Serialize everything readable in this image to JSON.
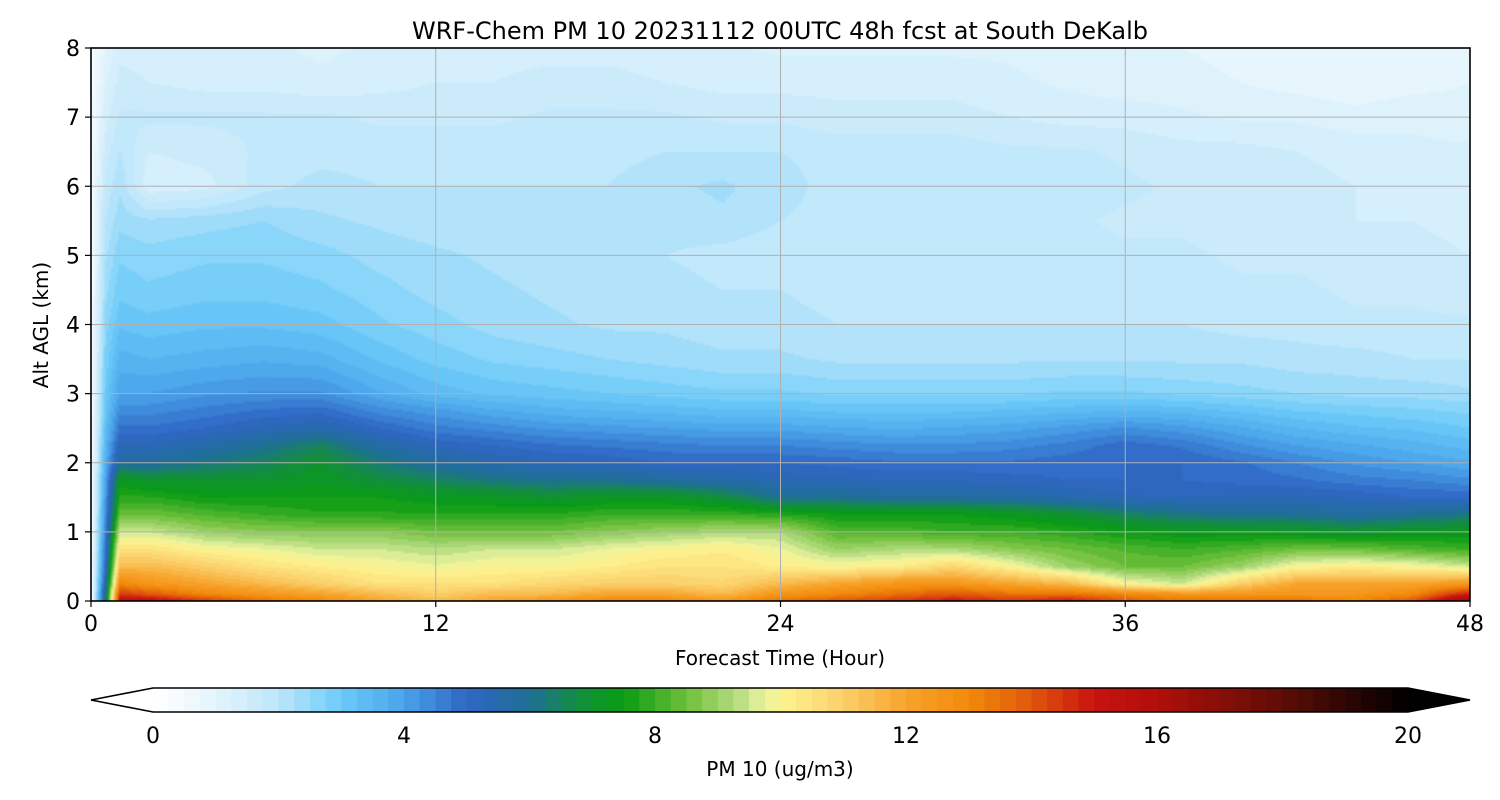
{
  "chart_data": {
    "type": "heatmap",
    "title": "WRF-Chem PM 10  20231112 00UTC 48h fcst at South DeKalb",
    "xlabel": "Forecast Time (Hour)",
    "ylabel": "Alt AGL (km)",
    "xlim": [
      0,
      48
    ],
    "ylim": [
      0,
      8
    ],
    "xticks": [
      0,
      12,
      24,
      36,
      48
    ],
    "yticks": [
      0,
      1,
      2,
      3,
      4,
      5,
      6,
      7,
      8
    ],
    "grid": true,
    "colorbar": {
      "label": "PM 10  (ug/m3)",
      "ticks": [
        0,
        4,
        8,
        12,
        16,
        20
      ],
      "range": [
        0,
        20
      ],
      "extend": "both",
      "stops": [
        {
          "v": 0,
          "color": "#ffffff"
        },
        {
          "v": 1,
          "color": "#e3f4fc"
        },
        {
          "v": 2,
          "color": "#bde6fb"
        },
        {
          "v": 3,
          "color": "#6ccaf9"
        },
        {
          "v": 4,
          "color": "#4aa3ea"
        },
        {
          "v": 5,
          "color": "#2f66c4"
        },
        {
          "v": 6,
          "color": "#1f6f96"
        },
        {
          "v": 6.8,
          "color": "#128f3c"
        },
        {
          "v": 7.5,
          "color": "#089b12"
        },
        {
          "v": 8.5,
          "color": "#6fbf3a"
        },
        {
          "v": 9.3,
          "color": "#b6dc80"
        },
        {
          "v": 9.7,
          "color": "#e3f19c"
        },
        {
          "v": 10,
          "color": "#fdf591"
        },
        {
          "v": 11,
          "color": "#fbcf6a"
        },
        {
          "v": 12,
          "color": "#f8a32c"
        },
        {
          "v": 13,
          "color": "#f28a0a"
        },
        {
          "v": 14,
          "color": "#e0560c"
        },
        {
          "v": 15,
          "color": "#c8120e"
        },
        {
          "v": 16,
          "color": "#b10f0a"
        },
        {
          "v": 18,
          "color": "#5e0d06"
        },
        {
          "v": 20,
          "color": "#000000"
        }
      ]
    },
    "x": [
      0,
      0.5,
      1,
      2,
      4,
      6,
      8,
      10,
      12,
      14,
      16,
      18,
      20,
      22,
      24,
      26,
      28,
      30,
      32,
      34,
      36,
      38,
      40,
      42,
      44,
      46,
      48
    ],
    "y": [
      0,
      0.1,
      0.25,
      0.5,
      0.75,
      1.0,
      1.25,
      1.5,
      1.75,
      2.0,
      2.25,
      2.5,
      2.75,
      3.0,
      3.5,
      4.0,
      4.5,
      5.0,
      5.5,
      6.0,
      6.5,
      7.0,
      7.5,
      8.0
    ],
    "values": [
      [
        0.3,
        6.0,
        15.5,
        15.5,
        14.5,
        13.5,
        13.0,
        12.0,
        11.5,
        12.0,
        12.5,
        13.0,
        13.0,
        12.5,
        13.5,
        14.0,
        14.5,
        15.0,
        14.5,
        15.0,
        14.0,
        13.5,
        13.5,
        13.5,
        13.0,
        14.0,
        17.0
      ],
      [
        0.3,
        6.0,
        14.5,
        14.0,
        13.0,
        12.5,
        12.0,
        11.5,
        11.0,
        11.5,
        11.5,
        12.0,
        12.0,
        11.5,
        12.5,
        13.0,
        13.5,
        14.0,
        13.5,
        13.5,
        13.0,
        12.5,
        12.5,
        12.5,
        12.5,
        13.0,
        15.0
      ],
      [
        0.3,
        5.5,
        13.0,
        12.5,
        12.0,
        11.5,
        11.0,
        10.5,
        10.5,
        10.5,
        10.8,
        11.0,
        11.0,
        10.8,
        11.5,
        12.0,
        12.5,
        12.5,
        12.0,
        11.5,
        10.0,
        9.5,
        11.0,
        12.0,
        12.0,
        12.0,
        12.5
      ],
      [
        0.3,
        5.0,
        11.5,
        11.5,
        11.0,
        10.5,
        10.2,
        10.0,
        9.8,
        10.0,
        10.0,
        10.2,
        10.5,
        10.5,
        10.2,
        10.0,
        10.2,
        10.8,
        10.0,
        9.0,
        8.5,
        8.5,
        9.0,
        10.0,
        10.2,
        10.0,
        9.5
      ],
      [
        0.3,
        4.8,
        10.5,
        10.5,
        10.0,
        9.8,
        9.5,
        9.5,
        9.3,
        9.5,
        9.5,
        9.8,
        10.0,
        10.2,
        9.8,
        9.0,
        9.2,
        9.2,
        8.8,
        8.5,
        8.2,
        8.0,
        8.2,
        8.5,
        8.5,
        8.2,
        8.0
      ],
      [
        0.3,
        4.5,
        9.5,
        9.5,
        9.0,
        8.8,
        8.8,
        8.8,
        8.5,
        8.5,
        8.5,
        8.8,
        9.0,
        9.2,
        9.2,
        8.2,
        8.2,
        8.0,
        8.0,
        7.8,
        7.5,
        7.3,
        7.3,
        7.2,
        7.0,
        7.2,
        7.3
      ],
      [
        0.3,
        4.3,
        8.5,
        8.5,
        8.2,
        8.0,
        7.8,
        7.8,
        7.8,
        7.8,
        7.8,
        8.0,
        8.0,
        8.0,
        7.8,
        7.5,
        7.5,
        7.5,
        7.3,
        7.0,
        6.5,
        6.2,
        6.0,
        6.0,
        5.8,
        6.0,
        6.2
      ],
      [
        0.3,
        4.1,
        7.8,
        7.8,
        7.5,
        7.5,
        7.5,
        7.5,
        7.3,
        7.2,
        7.0,
        7.2,
        7.2,
        6.8,
        6.0,
        6.0,
        5.8,
        5.8,
        5.7,
        5.5,
        5.3,
        5.2,
        5.3,
        5.3,
        5.2,
        5.0,
        5.0
      ],
      [
        0.3,
        3.9,
        7.3,
        7.0,
        7.0,
        7.0,
        7.2,
        6.8,
        6.5,
        6.2,
        6.0,
        6.0,
        5.8,
        5.6,
        5.4,
        5.3,
        5.2,
        5.2,
        5.1,
        5.0,
        5.0,
        5.0,
        4.9,
        4.8,
        4.6,
        4.5,
        4.3
      ],
      [
        0.3,
        3.7,
        5.8,
        5.8,
        6.2,
        6.5,
        7.0,
        6.3,
        5.8,
        5.5,
        5.3,
        5.2,
        5.0,
        5.0,
        5.0,
        4.9,
        4.8,
        4.8,
        4.8,
        4.9,
        5.0,
        5.0,
        4.8,
        4.5,
        4.2,
        4.0,
        3.8
      ],
      [
        0.3,
        3.5,
        5.3,
        5.3,
        5.6,
        6.0,
        6.5,
        5.7,
        5.2,
        5.0,
        4.8,
        4.7,
        4.6,
        4.5,
        4.5,
        4.4,
        4.3,
        4.3,
        4.4,
        4.6,
        4.9,
        4.7,
        4.3,
        4.0,
        3.8,
        3.6,
        3.4
      ],
      [
        0.3,
        3.3,
        4.8,
        4.8,
        5.0,
        5.3,
        5.5,
        5.0,
        4.6,
        4.4,
        4.2,
        4.1,
        4.0,
        3.9,
        3.9,
        3.8,
        3.7,
        3.8,
        3.9,
        4.1,
        4.3,
        4.1,
        3.8,
        3.5,
        3.3,
        3.2,
        3.0
      ],
      [
        0.3,
        3.1,
        4.4,
        4.4,
        4.6,
        4.8,
        4.9,
        4.4,
        4.1,
        3.8,
        3.6,
        3.5,
        3.4,
        3.3,
        3.3,
        3.2,
        3.2,
        3.2,
        3.3,
        3.4,
        3.5,
        3.4,
        3.2,
        3.0,
        2.9,
        2.8,
        2.7
      ],
      [
        0.3,
        3.0,
        4.0,
        4.0,
        4.2,
        4.3,
        4.3,
        3.8,
        3.4,
        3.2,
        3.1,
        3.0,
        2.9,
        2.8,
        2.8,
        2.7,
        2.7,
        2.7,
        2.7,
        2.8,
        2.8,
        2.7,
        2.6,
        2.5,
        2.4,
        2.4,
        2.3
      ],
      [
        0.3,
        2.8,
        3.6,
        3.5,
        3.6,
        3.7,
        3.6,
        3.2,
        2.9,
        2.7,
        2.6,
        2.5,
        2.4,
        2.3,
        2.3,
        2.2,
        2.2,
        2.2,
        2.2,
        2.2,
        2.2,
        2.2,
        2.2,
        2.1,
        2.1,
        2.0,
        2.0
      ],
      [
        0.3,
        2.6,
        3.2,
        3.1,
        3.2,
        3.2,
        3.1,
        2.8,
        2.6,
        2.4,
        2.3,
        2.2,
        2.2,
        2.1,
        2.1,
        2.0,
        2.0,
        2.0,
        2.0,
        2.0,
        2.0,
        2.0,
        1.9,
        1.9,
        1.8,
        1.8,
        1.8
      ],
      [
        0.3,
        2.4,
        2.9,
        2.8,
        2.9,
        2.9,
        2.8,
        2.6,
        2.4,
        2.3,
        2.2,
        2.1,
        2.1,
        2.0,
        2.0,
        1.9,
        1.9,
        1.9,
        1.9,
        1.9,
        1.9,
        1.9,
        1.8,
        1.8,
        1.7,
        1.7,
        1.6
      ],
      [
        0.3,
        2.2,
        2.7,
        2.6,
        2.7,
        2.7,
        2.6,
        2.4,
        2.3,
        2.2,
        2.1,
        2.0,
        2.0,
        1.9,
        1.8,
        1.8,
        1.8,
        1.8,
        1.8,
        1.8,
        1.8,
        1.8,
        1.7,
        1.7,
        1.6,
        1.6,
        1.5
      ],
      [
        0.3,
        2.0,
        2.4,
        2.3,
        2.4,
        2.5,
        2.3,
        2.2,
        2.1,
        2.1,
        2.0,
        2.0,
        2.1,
        2.2,
        2.0,
        1.9,
        1.8,
        1.8,
        1.8,
        1.8,
        1.7,
        1.7,
        1.6,
        1.6,
        1.5,
        1.5,
        1.4
      ],
      [
        0.3,
        1.8,
        2.2,
        1.3,
        1.4,
        1.9,
        2.1,
        2.0,
        2.0,
        2.0,
        2.0,
        2.0,
        2.2,
        2.3,
        2.1,
        1.9,
        1.9,
        1.9,
        1.9,
        1.9,
        1.8,
        1.7,
        1.6,
        1.6,
        1.5,
        1.4,
        1.4
      ],
      [
        0.3,
        1.6,
        2.0,
        1.5,
        1.6,
        1.8,
        1.9,
        1.9,
        1.9,
        1.9,
        1.9,
        1.9,
        2.0,
        2.0,
        2.0,
        1.9,
        1.9,
        1.9,
        1.8,
        1.8,
        1.7,
        1.6,
        1.6,
        1.5,
        1.4,
        1.3,
        1.3
      ],
      [
        0.3,
        1.4,
        1.8,
        1.8,
        1.8,
        1.8,
        1.8,
        1.7,
        1.7,
        1.7,
        1.8,
        1.8,
        1.8,
        1.7,
        1.7,
        1.6,
        1.6,
        1.6,
        1.5,
        1.4,
        1.4,
        1.3,
        1.2,
        1.2,
        1.1,
        1.2,
        1.1
      ],
      [
        0.3,
        1.2,
        1.6,
        1.5,
        1.4,
        1.4,
        1.3,
        1.4,
        1.5,
        1.5,
        1.6,
        1.6,
        1.5,
        1.4,
        1.4,
        1.4,
        1.4,
        1.4,
        1.3,
        1.2,
        1.1,
        1.1,
        1.0,
        0.9,
        0.8,
        0.9,
        1.0
      ],
      [
        0.3,
        1.0,
        1.4,
        1.4,
        1.3,
        1.3,
        1.2,
        1.3,
        1.4,
        1.4,
        1.4,
        1.4,
        1.3,
        1.3,
        1.2,
        1.2,
        1.2,
        1.2,
        1.2,
        1.1,
        1.0,
        1.0,
        0.9,
        0.8,
        0.8,
        0.8,
        0.9
      ]
    ]
  }
}
